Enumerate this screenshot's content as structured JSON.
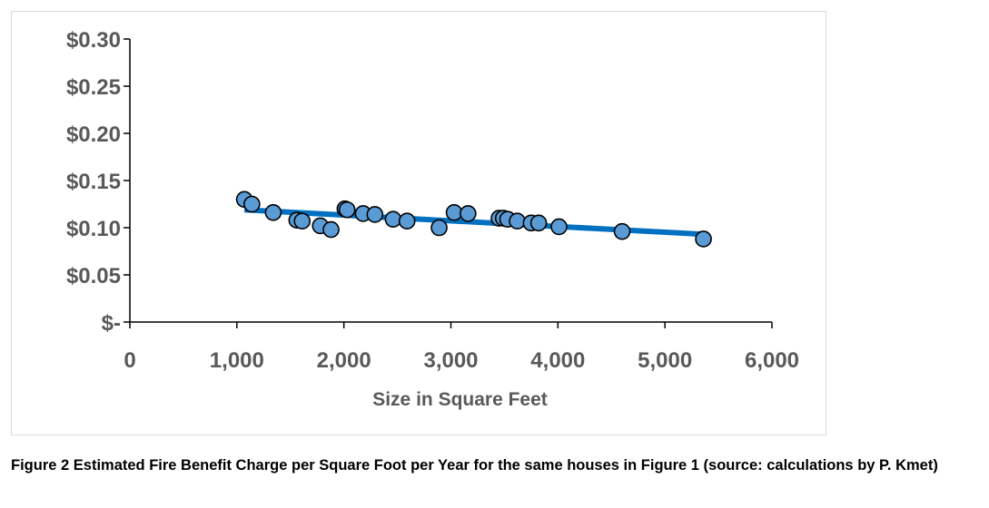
{
  "chart_data": {
    "type": "scatter",
    "xlabel": "Size in Square Feet",
    "ylabel": "",
    "xlim": [
      0,
      6000
    ],
    "ylim": [
      0,
      0.3
    ],
    "x_ticks": [
      0,
      1000,
      2000,
      3000,
      4000,
      5000,
      6000
    ],
    "x_tick_labels": [
      "0",
      "1,000",
      "2,000",
      "3,000",
      "4,000",
      "5,000",
      "6,000"
    ],
    "y_ticks": [
      0,
      0.05,
      0.1,
      0.15,
      0.2,
      0.25,
      0.3
    ],
    "y_tick_labels": [
      "$-",
      "$0.05",
      "$0.10",
      "$0.15",
      "$0.20",
      "$0.25",
      "$0.30"
    ],
    "grid": false,
    "legend": "none",
    "marker_fill": "#5B9BD5",
    "marker_edge": "#000000",
    "trendline_color": "#0070C0",
    "points": [
      {
        "x": 1070,
        "y": 0.13
      },
      {
        "x": 1140,
        "y": 0.125
      },
      {
        "x": 1340,
        "y": 0.116
      },
      {
        "x": 1560,
        "y": 0.108
      },
      {
        "x": 1610,
        "y": 0.107
      },
      {
        "x": 1780,
        "y": 0.102
      },
      {
        "x": 1880,
        "y": 0.098
      },
      {
        "x": 2010,
        "y": 0.12
      },
      {
        "x": 2030,
        "y": 0.119
      },
      {
        "x": 2180,
        "y": 0.115
      },
      {
        "x": 2290,
        "y": 0.114
      },
      {
        "x": 2460,
        "y": 0.109
      },
      {
        "x": 2590,
        "y": 0.107
      },
      {
        "x": 2890,
        "y": 0.1
      },
      {
        "x": 3030,
        "y": 0.116
      },
      {
        "x": 3160,
        "y": 0.115
      },
      {
        "x": 3450,
        "y": 0.11
      },
      {
        "x": 3490,
        "y": 0.11
      },
      {
        "x": 3530,
        "y": 0.109
      },
      {
        "x": 3620,
        "y": 0.107
      },
      {
        "x": 3750,
        "y": 0.105
      },
      {
        "x": 3820,
        "y": 0.105
      },
      {
        "x": 4010,
        "y": 0.101
      },
      {
        "x": 4600,
        "y": 0.096
      },
      {
        "x": 5360,
        "y": 0.088
      }
    ],
    "trendline": {
      "x": [
        1070,
        5360
      ],
      "y": [
        0.119,
        0.093
      ]
    }
  },
  "caption": "Figure 2 Estimated Fire Benefit Charge per Square Foot per Year for the same houses in Figure 1 (source: calculations by P. Kmet)"
}
